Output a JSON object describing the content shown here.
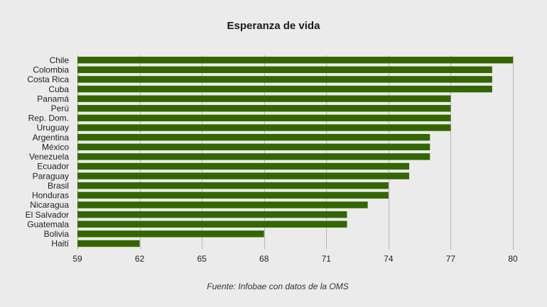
{
  "chart_data": {
    "type": "bar",
    "orientation": "horizontal",
    "title": "Esperanza de vida",
    "source": "Fuente: Infobae con datos de la OMS",
    "categories": [
      "Chile",
      "Colombia",
      "Costa Rica",
      "Cuba",
      "Panamá",
      "Perú",
      "Rep. Dom.",
      "Uruguay",
      "Argentina",
      "México",
      "Venezuela",
      "Ecuador",
      "Paraguay",
      "Brasil",
      "Honduras",
      "Nicaragua",
      "El Salvador",
      "Guatemala",
      "Bolivia",
      "Haití"
    ],
    "values": [
      80,
      79,
      79,
      79,
      77,
      77,
      77,
      77,
      76,
      76,
      76,
      75,
      75,
      74,
      74,
      73,
      72,
      72,
      68,
      62
    ],
    "xlim": [
      59,
      80
    ],
    "xticks": [
      59,
      62,
      65,
      68,
      71,
      74,
      77,
      80
    ],
    "bar_color": "#336600",
    "grid": true,
    "legend": "none"
  }
}
